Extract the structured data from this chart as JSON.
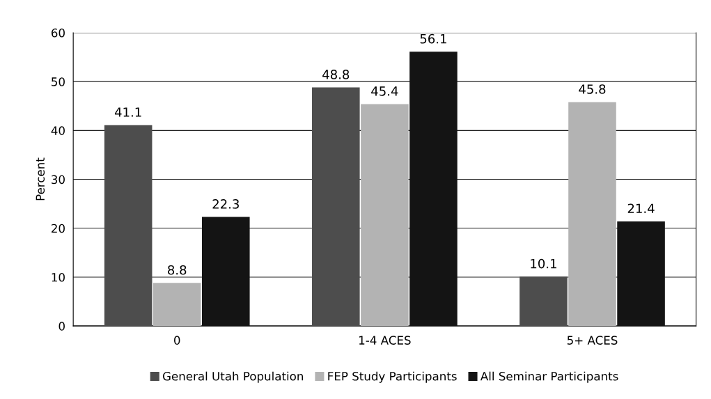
{
  "chart_data": {
    "type": "bar",
    "ylabel": "Percent",
    "categories": [
      "0",
      "1-4 ACES",
      "5+ ACES"
    ],
    "series": [
      {
        "name": "General Utah Population",
        "color": "#4d4d4d",
        "values": [
          41.1,
          48.8,
          10.1
        ]
      },
      {
        "name": "FEP Study Participants",
        "color": "#b3b3b3",
        "values": [
          8.8,
          45.4,
          45.8
        ]
      },
      {
        "name": "All Seminar Participants",
        "color": "#141414",
        "values": [
          22.3,
          56.1,
          21.4
        ]
      }
    ],
    "ylim": [
      0,
      60
    ],
    "yticks": [
      0,
      10,
      20,
      30,
      40,
      50,
      60
    ],
    "grid": "y",
    "legend": "bottom",
    "data_labels": true
  }
}
